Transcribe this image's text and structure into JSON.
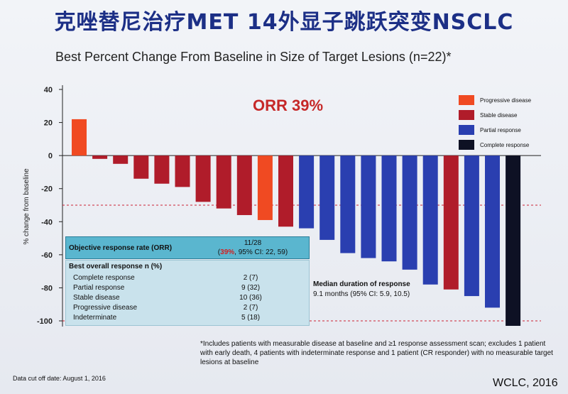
{
  "slide": {
    "title": "克唑替尼治疗MET 14外显子跳跃突变NSCLC",
    "subtitle": "Best Percent Change From Baseline in Size of Target Lesions (n=22)*",
    "orr_label": "ORR 39%",
    "cutoff": "Data cut off date: August 1, 2016",
    "source": "WCLC, 2016",
    "footnote": "*Includes patients with measurable disease at baseline and ≥1 response assessment scan; excludes 1 patient with early death, 4 patients with  indeterminate response and 1 patient (CR responder) with no measurable target lesions at baseline"
  },
  "table": {
    "orr_label": "Objective response rate (ORR)",
    "orr_value_line1": "11/28",
    "orr_value_open": "(",
    "orr_value_pct": "39%",
    "orr_value_rest": ", 95% CI: 22, 59)",
    "best_header": "Best overall response n (%)",
    "rows": [
      {
        "name": "Complete response",
        "value": "2 (7)"
      },
      {
        "name": "Partial response",
        "value": "9 (32)"
      },
      {
        "name": "Stable disease",
        "value": "10 (36)"
      },
      {
        "name": "Progressive disease",
        "value": "2 (7)"
      },
      {
        "name": "Indeterminate",
        "value": "5 (18)"
      }
    ]
  },
  "median": {
    "heading": "Median duration of response",
    "value": "9.1 months (95% CI: 5.9, 10.5)"
  },
  "legend": [
    {
      "label": "Progressive disease",
      "color": "#f04a22"
    },
    {
      "label": "Stable disease",
      "color": "#b01c2a"
    },
    {
      "label": "Partial response",
      "color": "#2a3fb0"
    },
    {
      "label": "Complete response",
      "color": "#0e1124"
    }
  ],
  "chart_data": {
    "type": "bar",
    "title": "Best Percent Change From Baseline in Size of Target Lesions (n=22)*",
    "xlabel": "",
    "ylabel": "% change from baseline",
    "ylim": [
      -100,
      40
    ],
    "yticks": [
      40,
      20,
      0,
      -20,
      -40,
      -60,
      -80,
      -100
    ],
    "reference_lines": [
      -30,
      -100
    ],
    "bars": [
      {
        "value": 22,
        "category": "Progressive disease"
      },
      {
        "value": -2,
        "category": "Stable disease"
      },
      {
        "value": -5,
        "category": "Stable disease"
      },
      {
        "value": -14,
        "category": "Stable disease"
      },
      {
        "value": -17,
        "category": "Stable disease"
      },
      {
        "value": -19,
        "category": "Stable disease"
      },
      {
        "value": -28,
        "category": "Stable disease"
      },
      {
        "value": -32,
        "category": "Stable disease"
      },
      {
        "value": -36,
        "category": "Stable disease"
      },
      {
        "value": -39,
        "category": "Progressive disease"
      },
      {
        "value": -43,
        "category": "Stable disease"
      },
      {
        "value": -44,
        "category": "Partial response"
      },
      {
        "value": -51,
        "category": "Partial response"
      },
      {
        "value": -59,
        "category": "Partial response"
      },
      {
        "value": -62,
        "category": "Partial response"
      },
      {
        "value": -64,
        "category": "Partial response"
      },
      {
        "value": -69,
        "category": "Partial response"
      },
      {
        "value": -78,
        "category": "Partial response"
      },
      {
        "value": -81,
        "category": "Stable disease"
      },
      {
        "value": -85,
        "category": "Partial response"
      },
      {
        "value": -92,
        "category": "Partial response"
      },
      {
        "value": -103,
        "category": "Complete response"
      }
    ]
  }
}
